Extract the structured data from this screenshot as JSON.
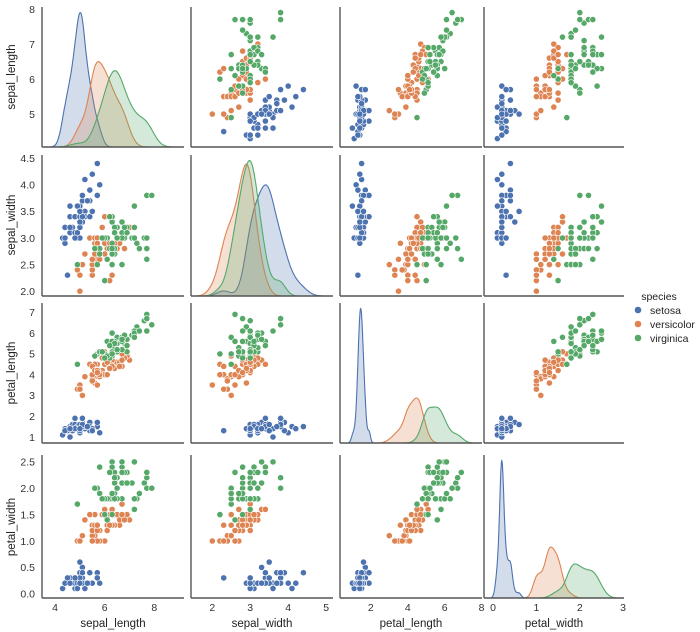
{
  "chart_data": {
    "type": "scatter",
    "layout": "pairplot",
    "diagonal": "kde",
    "grid": false,
    "variables": [
      "sepal_length",
      "sepal_width",
      "petal_length",
      "petal_width"
    ],
    "axes": {
      "sepal_length": {
        "xlim": [
          3.47,
          9.2
        ],
        "ylim": [
          4.06,
          8.06
        ],
        "xticks": [
          "4",
          "6",
          "8"
        ],
        "yticks": [
          "5",
          "6",
          "7",
          "8"
        ]
      },
      "sepal_width": {
        "xlim": [
          1.44,
          5.18
        ],
        "ylim": [
          1.91,
          4.56
        ],
        "xticks": [
          "2",
          "3",
          "4",
          "5"
        ],
        "yticks": [
          "2.0",
          "2.5",
          "3.0",
          "3.5",
          "4.0",
          "4.5"
        ]
      },
      "petal_length": {
        "xlim": [
          0.33,
          8.02
        ],
        "ylim": [
          0.71,
          7.45
        ],
        "xticks": [
          "2",
          "4",
          "6",
          "8"
        ],
        "yticks": [
          "1",
          "2",
          "3",
          "4",
          "5",
          "6",
          "7"
        ]
      },
      "petal_width": {
        "xlim": [
          -0.21,
          3.02
        ],
        "ylim": [
          -0.08,
          2.63
        ],
        "xticks": [
          "0",
          "1",
          "2",
          "3"
        ],
        "yticks": [
          "0.0",
          "0.5",
          "1.0",
          "1.5",
          "2.0",
          "2.5"
        ]
      }
    },
    "legend": {
      "title": "species",
      "placement": "right"
    },
    "series": [
      {
        "name": "setosa",
        "color": "#4c72b0",
        "points": [
          [
            5.1,
            3.5,
            1.4,
            0.2
          ],
          [
            4.9,
            3.0,
            1.4,
            0.2
          ],
          [
            4.7,
            3.2,
            1.3,
            0.2
          ],
          [
            4.6,
            3.1,
            1.5,
            0.2
          ],
          [
            5.0,
            3.6,
            1.4,
            0.2
          ],
          [
            5.4,
            3.9,
            1.7,
            0.4
          ],
          [
            4.6,
            3.4,
            1.4,
            0.3
          ],
          [
            5.0,
            3.4,
            1.5,
            0.2
          ],
          [
            4.4,
            2.9,
            1.4,
            0.2
          ],
          [
            4.9,
            3.1,
            1.5,
            0.1
          ],
          [
            5.4,
            3.7,
            1.5,
            0.2
          ],
          [
            4.8,
            3.4,
            1.6,
            0.2
          ],
          [
            4.8,
            3.0,
            1.4,
            0.1
          ],
          [
            4.3,
            3.0,
            1.1,
            0.1
          ],
          [
            5.8,
            4.0,
            1.2,
            0.2
          ],
          [
            5.7,
            4.4,
            1.5,
            0.4
          ],
          [
            5.4,
            3.9,
            1.3,
            0.4
          ],
          [
            5.1,
            3.5,
            1.4,
            0.3
          ],
          [
            5.7,
            3.8,
            1.7,
            0.3
          ],
          [
            5.1,
            3.8,
            1.5,
            0.3
          ],
          [
            5.4,
            3.4,
            1.7,
            0.2
          ],
          [
            5.1,
            3.7,
            1.5,
            0.4
          ],
          [
            4.6,
            3.6,
            1.0,
            0.2
          ],
          [
            5.1,
            3.3,
            1.7,
            0.5
          ],
          [
            4.8,
            3.4,
            1.9,
            0.2
          ],
          [
            5.0,
            3.0,
            1.6,
            0.2
          ],
          [
            5.0,
            3.4,
            1.6,
            0.4
          ],
          [
            5.2,
            3.5,
            1.5,
            0.2
          ],
          [
            5.2,
            3.4,
            1.4,
            0.2
          ],
          [
            4.7,
            3.2,
            1.6,
            0.2
          ],
          [
            4.8,
            3.1,
            1.6,
            0.2
          ],
          [
            5.4,
            3.4,
            1.5,
            0.4
          ],
          [
            5.2,
            4.1,
            1.5,
            0.1
          ],
          [
            5.5,
            4.2,
            1.4,
            0.2
          ],
          [
            4.9,
            3.1,
            1.5,
            0.2
          ],
          [
            5.0,
            3.2,
            1.2,
            0.2
          ],
          [
            5.5,
            3.5,
            1.3,
            0.2
          ],
          [
            4.9,
            3.6,
            1.4,
            0.1
          ],
          [
            4.4,
            3.0,
            1.3,
            0.2
          ],
          [
            5.1,
            3.4,
            1.5,
            0.2
          ],
          [
            5.0,
            3.5,
            1.3,
            0.3
          ],
          [
            4.5,
            2.3,
            1.3,
            0.3
          ],
          [
            4.4,
            3.2,
            1.3,
            0.2
          ],
          [
            5.0,
            3.5,
            1.6,
            0.6
          ],
          [
            5.1,
            3.8,
            1.9,
            0.4
          ],
          [
            4.8,
            3.0,
            1.4,
            0.3
          ],
          [
            5.1,
            3.8,
            1.6,
            0.2
          ],
          [
            4.6,
            3.2,
            1.4,
            0.2
          ],
          [
            5.3,
            3.7,
            1.5,
            0.2
          ],
          [
            5.0,
            3.3,
            1.4,
            0.2
          ]
        ]
      },
      {
        "name": "versicolor",
        "color": "#dd8452",
        "points": [
          [
            7.0,
            3.2,
            4.7,
            1.4
          ],
          [
            6.4,
            3.2,
            4.5,
            1.5
          ],
          [
            6.9,
            3.1,
            4.9,
            1.5
          ],
          [
            5.5,
            2.3,
            4.0,
            1.3
          ],
          [
            6.5,
            2.8,
            4.6,
            1.5
          ],
          [
            5.7,
            2.8,
            4.5,
            1.3
          ],
          [
            6.3,
            3.3,
            4.7,
            1.6
          ],
          [
            4.9,
            2.4,
            3.3,
            1.0
          ],
          [
            6.6,
            2.9,
            4.6,
            1.3
          ],
          [
            5.2,
            2.7,
            3.9,
            1.4
          ],
          [
            5.0,
            2.0,
            3.5,
            1.0
          ],
          [
            5.9,
            3.0,
            4.2,
            1.5
          ],
          [
            6.0,
            2.2,
            4.0,
            1.0
          ],
          [
            6.1,
            2.9,
            4.7,
            1.4
          ],
          [
            5.6,
            2.9,
            3.6,
            1.3
          ],
          [
            6.7,
            3.1,
            4.4,
            1.4
          ],
          [
            5.6,
            3.0,
            4.5,
            1.5
          ],
          [
            5.8,
            2.7,
            4.1,
            1.0
          ],
          [
            6.2,
            2.2,
            4.5,
            1.5
          ],
          [
            5.6,
            2.5,
            3.9,
            1.1
          ],
          [
            5.9,
            3.2,
            4.8,
            1.8
          ],
          [
            6.1,
            2.8,
            4.0,
            1.3
          ],
          [
            6.3,
            2.5,
            4.9,
            1.5
          ],
          [
            6.1,
            2.8,
            4.7,
            1.2
          ],
          [
            6.4,
            2.9,
            4.3,
            1.3
          ],
          [
            6.6,
            3.0,
            4.4,
            1.4
          ],
          [
            6.8,
            2.8,
            4.8,
            1.4
          ],
          [
            6.7,
            3.0,
            5.0,
            1.7
          ],
          [
            6.0,
            2.9,
            4.5,
            1.5
          ],
          [
            5.7,
            2.6,
            3.5,
            1.0
          ],
          [
            5.5,
            2.4,
            3.8,
            1.1
          ],
          [
            5.5,
            2.4,
            3.7,
            1.0
          ],
          [
            5.8,
            2.7,
            3.9,
            1.2
          ],
          [
            6.0,
            2.7,
            5.1,
            1.6
          ],
          [
            5.4,
            3.0,
            4.5,
            1.5
          ],
          [
            6.0,
            3.4,
            4.5,
            1.6
          ],
          [
            6.7,
            3.1,
            4.7,
            1.5
          ],
          [
            6.3,
            2.3,
            4.4,
            1.3
          ],
          [
            5.6,
            3.0,
            4.1,
            1.3
          ],
          [
            5.5,
            2.5,
            4.0,
            1.3
          ],
          [
            5.5,
            2.6,
            4.4,
            1.2
          ],
          [
            6.1,
            3.0,
            4.6,
            1.4
          ],
          [
            5.8,
            2.6,
            4.0,
            1.2
          ],
          [
            5.0,
            2.3,
            3.3,
            1.0
          ],
          [
            5.6,
            2.7,
            4.2,
            1.3
          ],
          [
            5.7,
            3.0,
            4.2,
            1.2
          ],
          [
            5.7,
            2.9,
            4.2,
            1.3
          ],
          [
            6.2,
            2.9,
            4.3,
            1.3
          ],
          [
            5.1,
            2.5,
            3.0,
            1.1
          ],
          [
            5.7,
            2.8,
            4.1,
            1.3
          ]
        ]
      },
      {
        "name": "virginica",
        "color": "#55a868",
        "points": [
          [
            6.3,
            3.3,
            6.0,
            2.5
          ],
          [
            5.8,
            2.7,
            5.1,
            1.9
          ],
          [
            7.1,
            3.0,
            5.9,
            2.1
          ],
          [
            6.3,
            2.9,
            5.6,
            1.8
          ],
          [
            6.5,
            3.0,
            5.8,
            2.2
          ],
          [
            7.6,
            3.0,
            6.6,
            2.1
          ],
          [
            4.9,
            2.5,
            4.5,
            1.7
          ],
          [
            7.3,
            2.9,
            6.3,
            1.8
          ],
          [
            6.7,
            2.5,
            5.8,
            1.8
          ],
          [
            7.2,
            3.6,
            6.1,
            2.5
          ],
          [
            6.5,
            3.2,
            5.1,
            2.0
          ],
          [
            6.4,
            2.7,
            5.3,
            1.9
          ],
          [
            6.8,
            3.0,
            5.5,
            2.1
          ],
          [
            5.7,
            2.5,
            5.0,
            2.0
          ],
          [
            5.8,
            2.8,
            5.1,
            2.4
          ],
          [
            6.4,
            3.2,
            5.3,
            2.3
          ],
          [
            6.5,
            3.0,
            5.5,
            1.8
          ],
          [
            7.7,
            3.8,
            6.7,
            2.2
          ],
          [
            7.7,
            2.6,
            6.9,
            2.3
          ],
          [
            6.0,
            2.2,
            5.0,
            1.5
          ],
          [
            6.9,
            3.2,
            5.7,
            2.3
          ],
          [
            5.6,
            2.8,
            4.9,
            2.0
          ],
          [
            7.7,
            2.8,
            6.7,
            2.0
          ],
          [
            6.3,
            2.7,
            4.9,
            1.8
          ],
          [
            6.7,
            3.3,
            5.7,
            2.1
          ],
          [
            7.2,
            3.2,
            6.0,
            1.8
          ],
          [
            6.2,
            2.8,
            4.8,
            1.8
          ],
          [
            6.1,
            3.0,
            4.9,
            1.8
          ],
          [
            6.4,
            2.8,
            5.6,
            2.1
          ],
          [
            7.2,
            3.0,
            5.8,
            1.6
          ],
          [
            7.4,
            2.8,
            6.1,
            1.9
          ],
          [
            7.9,
            3.8,
            6.4,
            2.0
          ],
          [
            6.4,
            2.8,
            5.6,
            2.2
          ],
          [
            6.3,
            2.8,
            5.1,
            1.5
          ],
          [
            6.1,
            2.6,
            5.6,
            1.4
          ],
          [
            7.7,
            3.0,
            6.1,
            2.3
          ],
          [
            6.3,
            3.4,
            5.6,
            2.4
          ],
          [
            6.4,
            3.1,
            5.5,
            1.8
          ],
          [
            6.0,
            3.0,
            4.8,
            1.8
          ],
          [
            6.9,
            3.1,
            5.4,
            2.1
          ],
          [
            6.7,
            3.1,
            5.6,
            2.4
          ],
          [
            6.9,
            3.1,
            5.1,
            2.3
          ],
          [
            5.8,
            2.7,
            5.1,
            1.9
          ],
          [
            6.8,
            3.2,
            5.9,
            2.3
          ],
          [
            6.7,
            3.3,
            5.7,
            2.5
          ],
          [
            6.7,
            3.0,
            5.2,
            2.3
          ],
          [
            6.3,
            2.5,
            5.0,
            1.9
          ],
          [
            6.5,
            3.0,
            5.2,
            2.0
          ],
          [
            6.2,
            3.4,
            5.4,
            2.3
          ],
          [
            5.9,
            3.0,
            5.1,
            1.8
          ]
        ]
      }
    ]
  }
}
